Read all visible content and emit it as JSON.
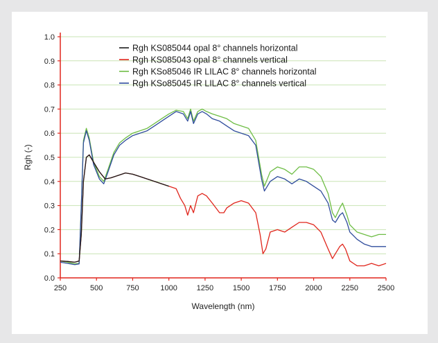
{
  "chart_data": {
    "type": "line",
    "xlabel": "Wavelength (nm)",
    "ylabel": "Rgh (-)",
    "xlim": [
      250,
      2500
    ],
    "ylim": [
      0,
      1.0
    ],
    "x_ticks": [
      250,
      500,
      750,
      1000,
      1250,
      1500,
      1750,
      2000,
      2250,
      2500
    ],
    "y_ticks": [
      "0.0",
      "0.1",
      "0.2",
      "0.3",
      "0.4",
      "0.5",
      "0.6",
      "0.7",
      "0.8",
      "0.9",
      "1.0"
    ],
    "grid": "horizontal",
    "legend_position": "top-right",
    "series": [
      {
        "name": "Rgh KS085044 opal 8° channels horizontal",
        "color": "#1a1a1a",
        "x": [
          250,
          300,
          350,
          380,
          395,
          410,
          430,
          450,
          480,
          520,
          560,
          600,
          650,
          700,
          750,
          800,
          850,
          900,
          950,
          1000
        ],
        "values": [
          0.07,
          0.068,
          0.065,
          0.07,
          0.18,
          0.4,
          0.5,
          0.51,
          0.48,
          0.44,
          0.41,
          0.415,
          0.425,
          0.435,
          0.43,
          0.42,
          0.41,
          0.4,
          0.39,
          0.38
        ]
      },
      {
        "name": "Rgh KS085043 opal 8° channels vertical",
        "color": "#e0251b",
        "x": [
          250,
          300,
          350,
          380,
          395,
          410,
          430,
          450,
          480,
          520,
          560,
          600,
          650,
          700,
          750,
          800,
          850,
          900,
          950,
          1000,
          1050,
          1080,
          1110,
          1130,
          1150,
          1170,
          1200,
          1230,
          1260,
          1300,
          1350,
          1380,
          1400,
          1450,
          1500,
          1550,
          1600,
          1630,
          1650,
          1670,
          1700,
          1750,
          1800,
          1850,
          1900,
          1950,
          2000,
          2050,
          2100,
          2130,
          2150,
          2180,
          2200,
          2220,
          2250,
          2300,
          2350,
          2400,
          2450,
          2500
        ],
        "values": [
          0.07,
          0.068,
          0.065,
          0.07,
          0.18,
          0.4,
          0.5,
          0.51,
          0.48,
          0.44,
          0.41,
          0.415,
          0.425,
          0.435,
          0.43,
          0.42,
          0.41,
          0.4,
          0.39,
          0.38,
          0.37,
          0.33,
          0.3,
          0.26,
          0.3,
          0.27,
          0.34,
          0.35,
          0.34,
          0.31,
          0.27,
          0.27,
          0.29,
          0.31,
          0.32,
          0.31,
          0.27,
          0.18,
          0.1,
          0.12,
          0.19,
          0.2,
          0.19,
          0.21,
          0.23,
          0.23,
          0.22,
          0.19,
          0.12,
          0.08,
          0.1,
          0.13,
          0.14,
          0.12,
          0.07,
          0.05,
          0.05,
          0.06,
          0.05,
          0.06
        ]
      },
      {
        "name": "Rgh KSo85046 IR LILAC 8° channels horizontal",
        "color": "#6ebd45",
        "x": [
          250,
          300,
          350,
          380,
          395,
          410,
          430,
          450,
          480,
          520,
          550,
          580,
          620,
          660,
          700,
          750,
          800,
          850,
          900,
          950,
          1000,
          1050,
          1100,
          1130,
          1150,
          1170,
          1200,
          1230,
          1260,
          1300,
          1350,
          1400,
          1450,
          1500,
          1550,
          1600,
          1640,
          1660,
          1700,
          1750,
          1800,
          1850,
          1900,
          1950,
          2000,
          2050,
          2100,
          2130,
          2150,
          2180,
          2200,
          2230,
          2250,
          2300,
          2350,
          2400,
          2450,
          2500
        ],
        "values": [
          0.07,
          0.065,
          0.058,
          0.06,
          0.3,
          0.57,
          0.62,
          0.58,
          0.48,
          0.42,
          0.4,
          0.45,
          0.52,
          0.56,
          0.58,
          0.6,
          0.61,
          0.62,
          0.64,
          0.66,
          0.68,
          0.695,
          0.69,
          0.66,
          0.7,
          0.65,
          0.69,
          0.7,
          0.69,
          0.68,
          0.67,
          0.66,
          0.64,
          0.63,
          0.62,
          0.57,
          0.43,
          0.38,
          0.44,
          0.46,
          0.45,
          0.43,
          0.46,
          0.46,
          0.45,
          0.42,
          0.35,
          0.27,
          0.25,
          0.29,
          0.31,
          0.26,
          0.22,
          0.19,
          0.18,
          0.17,
          0.18,
          0.18
        ]
      },
      {
        "name": "Rgh KSo85045 IR LILAC 8° channels vertical",
        "color": "#2f4c9c",
        "x": [
          250,
          300,
          350,
          380,
          395,
          410,
          430,
          450,
          480,
          520,
          550,
          580,
          620,
          660,
          700,
          750,
          800,
          850,
          900,
          950,
          1000,
          1050,
          1100,
          1130,
          1150,
          1170,
          1200,
          1230,
          1260,
          1300,
          1350,
          1400,
          1450,
          1500,
          1550,
          1600,
          1640,
          1660,
          1700,
          1750,
          1800,
          1850,
          1900,
          1950,
          2000,
          2050,
          2100,
          2130,
          2150,
          2180,
          2200,
          2230,
          2250,
          2300,
          2350,
          2400,
          2450,
          2500
        ],
        "values": [
          0.065,
          0.06,
          0.055,
          0.058,
          0.3,
          0.56,
          0.61,
          0.57,
          0.47,
          0.41,
          0.39,
          0.44,
          0.51,
          0.55,
          0.57,
          0.59,
          0.6,
          0.61,
          0.63,
          0.65,
          0.67,
          0.69,
          0.68,
          0.65,
          0.69,
          0.64,
          0.68,
          0.69,
          0.68,
          0.66,
          0.65,
          0.63,
          0.61,
          0.6,
          0.59,
          0.55,
          0.41,
          0.36,
          0.4,
          0.42,
          0.41,
          0.39,
          0.41,
          0.4,
          0.38,
          0.36,
          0.31,
          0.24,
          0.23,
          0.26,
          0.27,
          0.23,
          0.19,
          0.16,
          0.14,
          0.13,
          0.13,
          0.13
        ]
      }
    ]
  }
}
